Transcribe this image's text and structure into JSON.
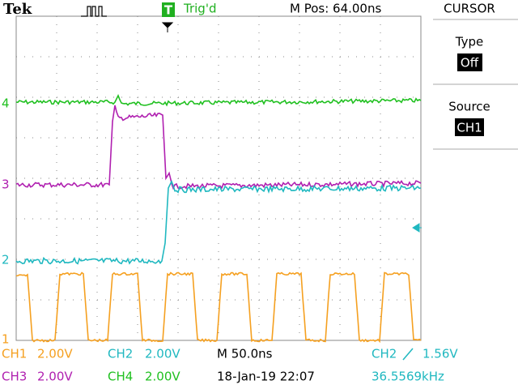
{
  "header": {
    "brand": "Tek",
    "trigger_icon": "T",
    "trigger_status": "Trig'd",
    "position": "M Pos: 64.00ns"
  },
  "menu": {
    "title": "CURSOR",
    "items": [
      {
        "label": "Type",
        "value": "Off"
      },
      {
        "label": "Source",
        "value": "CH1"
      }
    ]
  },
  "markers": [
    "4",
    "3",
    "2",
    "1"
  ],
  "status": {
    "channels": [
      {
        "name": "CH1",
        "scale": "2.00V"
      },
      {
        "name": "CH2",
        "scale": "2.00V"
      },
      {
        "name": "CH3",
        "scale": "2.00V"
      },
      {
        "name": "CH4",
        "scale": "2.00V"
      }
    ],
    "timebase": "M 50.0ns",
    "datetime": "18-Jan-19 22:07",
    "trigger_source": "CH2",
    "trigger_level": "1.56V",
    "frequency": "36.5569kHz"
  }
}
